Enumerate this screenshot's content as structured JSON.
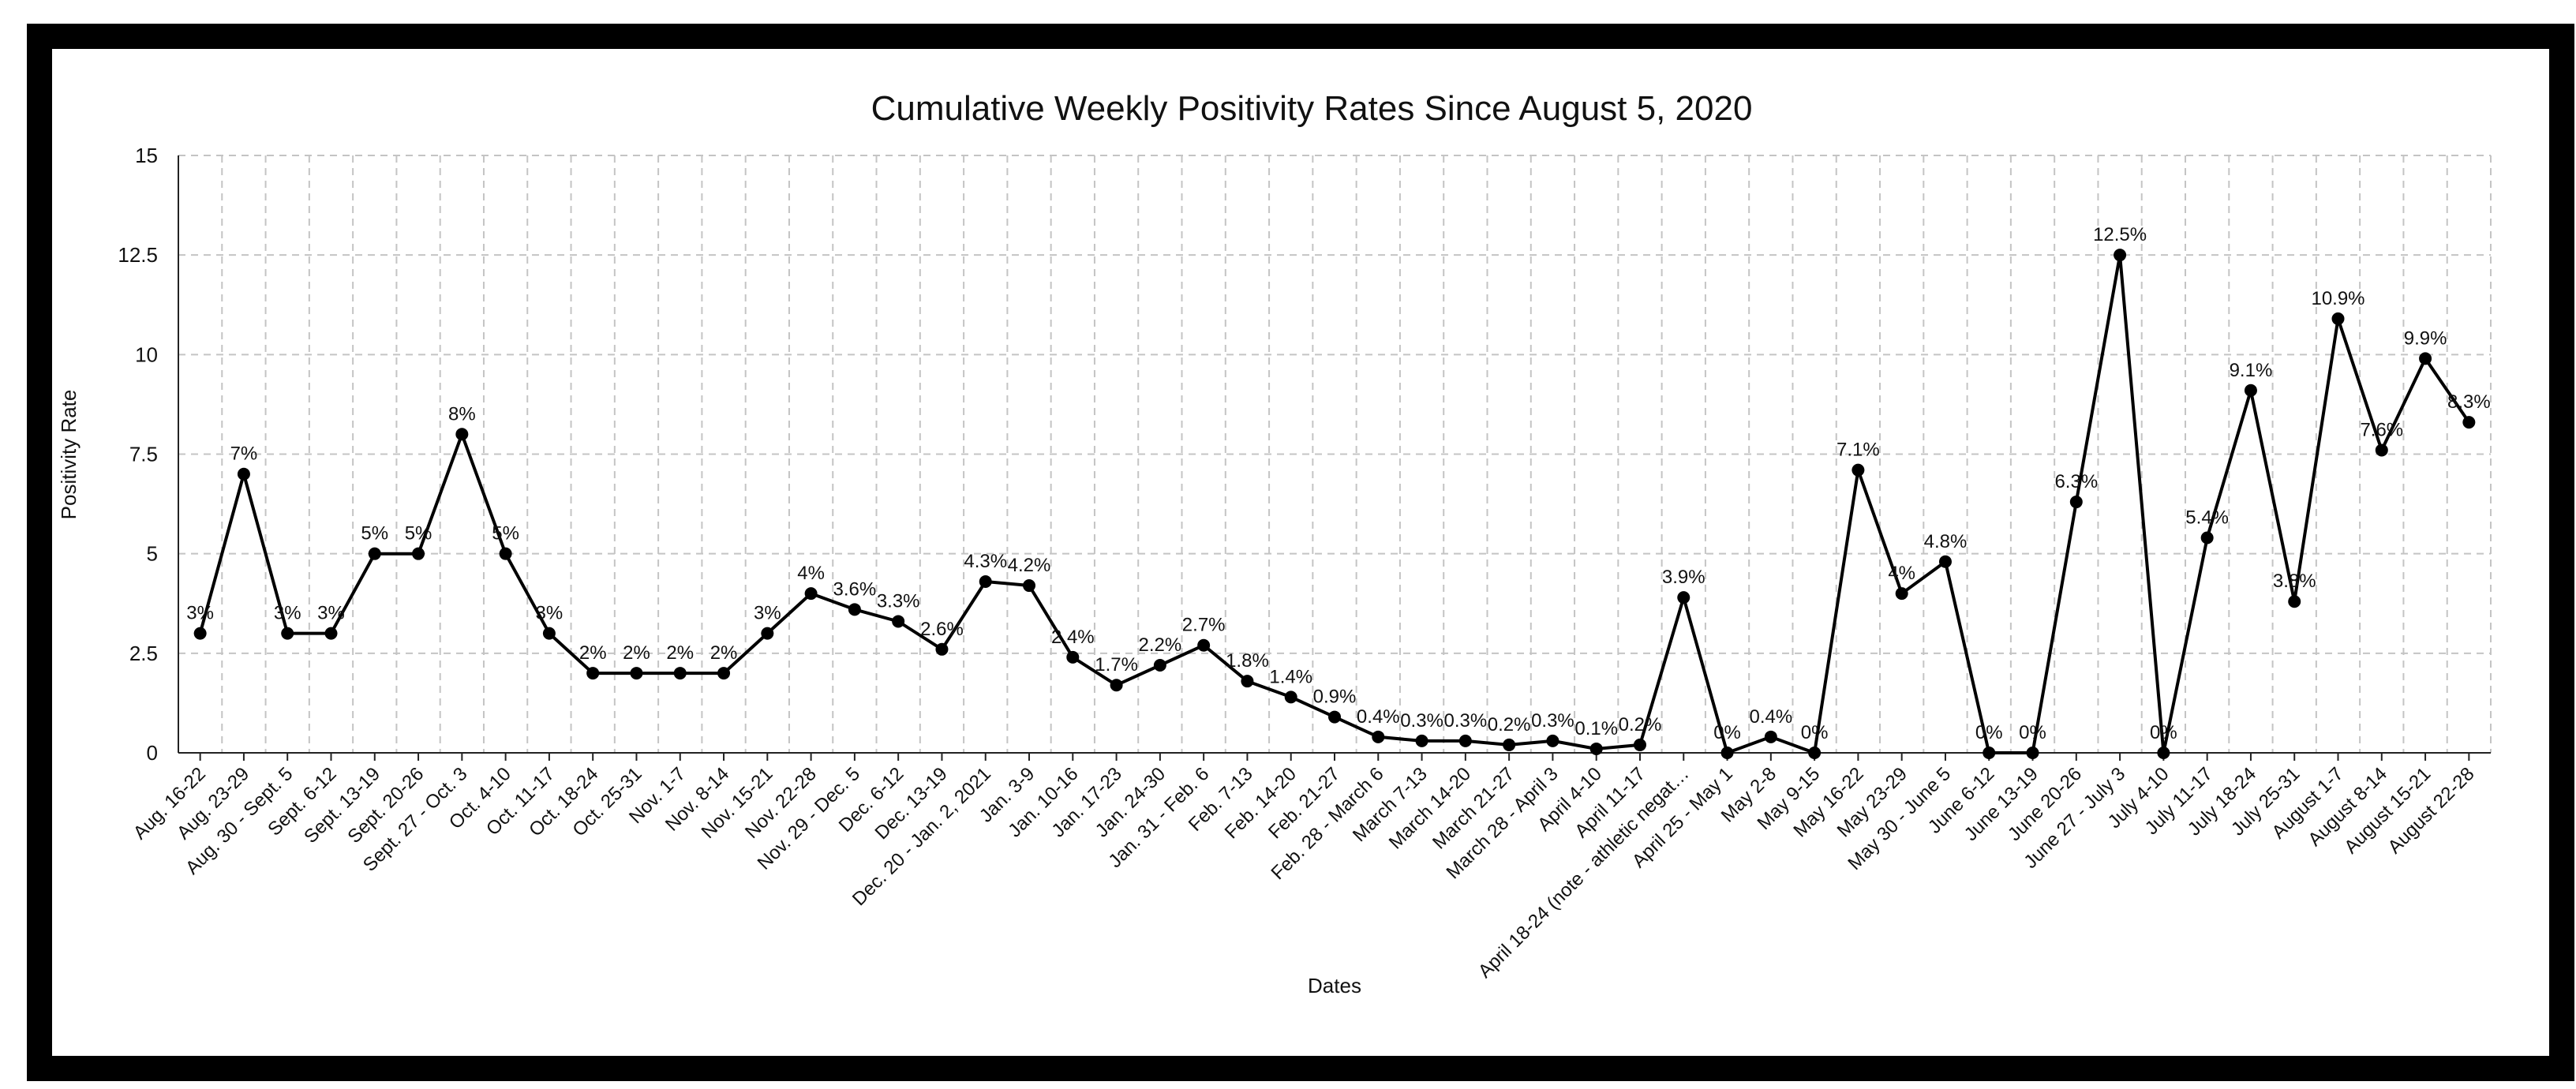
{
  "chart_data": {
    "type": "line",
    "title": "Cumulative Weekly Positivity Rates Since August 5, 2020",
    "xlabel": "Dates",
    "ylabel": "Positivity Rate",
    "ylim": [
      0,
      15
    ],
    "yticks": [
      "0",
      "2.5",
      "5",
      "7.5",
      "10",
      "12.5",
      "15"
    ],
    "grid": true,
    "legend": "none",
    "line_color": "#000000",
    "categories": [
      "Aug. 16-22",
      "Aug. 23-29",
      "Aug. 30 - Sept. 5",
      "Sept. 6-12",
      "Sept. 13-19",
      "Sept. 20-26",
      "Sept. 27 - Oct. 3",
      "Oct. 4-10",
      "Oct. 11-17",
      "Oct. 18-24",
      "Oct. 25-31",
      "Nov. 1-7",
      "Nov. 8-14",
      "Nov. 15-21",
      "Nov. 22-28",
      "Nov. 29 - Dec. 5",
      "Dec. 6-12",
      "Dec. 13-19",
      "Dec. 20 - Jan. 2, 2021",
      "Jan. 3-9",
      "Jan. 10-16",
      "Jan. 17-23",
      "Jan. 24-30",
      "Jan. 31 - Feb. 6",
      "Feb. 7-13",
      "Feb. 14-20",
      "Feb. 21-27",
      "Feb. 28 - March 6",
      "March 7-13",
      "March 14-20",
      "March 21-27",
      "March 28 - April 3",
      "April 4-10",
      "April 11-17",
      "April 18-24 (note - athletic negat…",
      "April 25 - May 1",
      "May 2-8",
      "May 9-15",
      "May 16-22",
      "May 23-29",
      "May 30 - June 5",
      "June 6-12",
      "June 13-19",
      "June 20-26",
      "June 27 - July 3",
      "July 4-10",
      "July 11-17",
      "July 18-24",
      "July 25-31",
      "August 1-7",
      "August 8-14",
      "August 15-21",
      "August 22-28"
    ],
    "values": [
      3,
      7,
      3,
      3,
      5,
      5,
      8,
      5,
      3,
      2,
      2,
      2,
      2,
      3,
      4,
      3.6,
      3.3,
      2.6,
      4.3,
      4.2,
      2.4,
      1.7,
      2.2,
      2.7,
      1.8,
      1.4,
      0.9,
      0.4,
      0.3,
      0.3,
      0.2,
      0.3,
      0.1,
      0.2,
      3.9,
      0,
      0.4,
      0,
      7.1,
      4,
      4.8,
      0,
      0,
      6.3,
      12.5,
      0,
      5.4,
      9.1,
      3.8,
      10.9,
      7.6,
      9.9,
      8.3
    ],
    "data_labels": [
      "3%",
      "7%",
      "3%",
      "3%",
      "5%",
      "5%",
      "8%",
      "5%",
      "3%",
      "2%",
      "2%",
      "2%",
      "2%",
      "3%",
      "4%",
      "3.6%",
      "3.3%",
      "2.6%",
      "4.3%",
      "4.2%",
      "2.4%",
      "1.7%",
      "2.2%",
      "2.7%",
      "1.8%",
      "1.4%",
      "0.9%",
      "0.4%",
      "0.3%",
      "0.3%",
      "0.2%",
      "0.3%",
      "0.1%",
      "0.2%",
      "3.9%",
      "0%",
      "0.4%",
      "0%",
      "7.1%",
      "4%",
      "4.8%",
      "0%",
      "0%",
      "6.3%",
      "12.5%",
      "0%",
      "5.4%",
      "9.1%",
      "3.8%",
      "10.9%",
      "7.6%",
      "9.9%",
      "8.3%"
    ]
  }
}
